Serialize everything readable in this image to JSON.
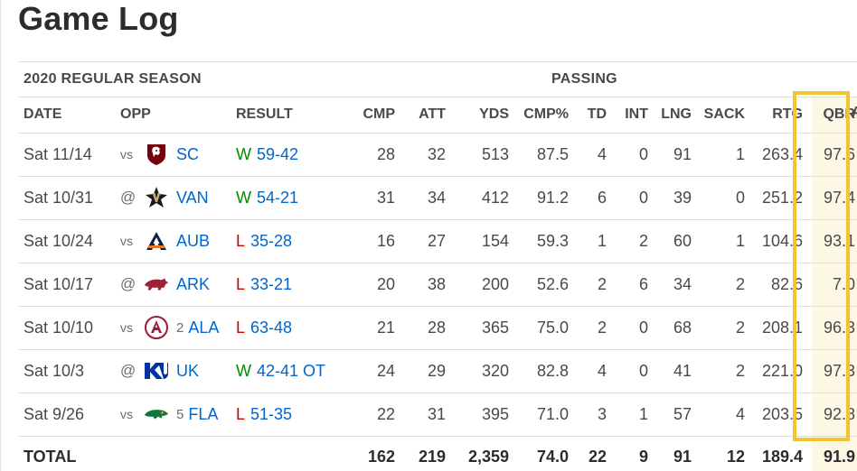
{
  "page": {
    "title": "Game Log"
  },
  "table": {
    "season_label": "2020 REGULAR SEASON",
    "group_label": "PASSING",
    "cut_header": "A",
    "headers": {
      "date": "DATE",
      "opp": "OPP",
      "result": "RESULT",
      "cmp": "CMP",
      "att": "ATT",
      "yds": "YDS",
      "cmp_pct": "CMP%",
      "td": "TD",
      "int": "INT",
      "lng": "LNG",
      "sack": "SACK",
      "rtg": "RTG",
      "qbr": "QBR"
    },
    "games": [
      {
        "date": "Sat 11/14",
        "prefix": "vs",
        "rank": "",
        "team": "SC",
        "logo": "south-carolina-gamecocks-logo",
        "wl": "W",
        "score": "59-42",
        "cmp": "28",
        "att": "32",
        "yds": "513",
        "cmp_pct": "87.5",
        "td": "4",
        "int": "0",
        "lng": "91",
        "sack": "1",
        "rtg": "263.4",
        "qbr": "97.6"
      },
      {
        "date": "Sat 10/31",
        "prefix": "@",
        "rank": "",
        "team": "VAN",
        "logo": "vanderbilt-commodores-logo",
        "wl": "W",
        "score": "54-21",
        "cmp": "31",
        "att": "34",
        "yds": "412",
        "cmp_pct": "91.2",
        "td": "6",
        "int": "0",
        "lng": "39",
        "sack": "0",
        "rtg": "251.2",
        "qbr": "97.4"
      },
      {
        "date": "Sat 10/24",
        "prefix": "vs",
        "rank": "",
        "team": "AUB",
        "logo": "auburn-tigers-logo",
        "wl": "L",
        "score": "35-28",
        "cmp": "16",
        "att": "27",
        "yds": "154",
        "cmp_pct": "59.3",
        "td": "1",
        "int": "2",
        "lng": "60",
        "sack": "1",
        "rtg": "104.6",
        "qbr": "93.1"
      },
      {
        "date": "Sat 10/17",
        "prefix": "@",
        "rank": "",
        "team": "ARK",
        "logo": "arkansas-razorbacks-logo",
        "wl": "L",
        "score": "33-21",
        "cmp": "20",
        "att": "38",
        "yds": "200",
        "cmp_pct": "52.6",
        "td": "2",
        "int": "6",
        "lng": "34",
        "sack": "2",
        "rtg": "82.6",
        "qbr": "7.0"
      },
      {
        "date": "Sat 10/10",
        "prefix": "vs",
        "rank": "2",
        "team": "ALA",
        "logo": "alabama-crimson-tide-logo",
        "wl": "L",
        "score": "63-48",
        "cmp": "21",
        "att": "28",
        "yds": "365",
        "cmp_pct": "75.0",
        "td": "2",
        "int": "0",
        "lng": "68",
        "sack": "2",
        "rtg": "208.1",
        "qbr": "96.3"
      },
      {
        "date": "Sat 10/3",
        "prefix": "@",
        "rank": "",
        "team": "UK",
        "logo": "kentucky-wildcats-logo",
        "wl": "W",
        "score": "42-41 OT",
        "cmp": "24",
        "att": "29",
        "yds": "320",
        "cmp_pct": "82.8",
        "td": "4",
        "int": "0",
        "lng": "41",
        "sack": "2",
        "rtg": "221.0",
        "qbr": "97.3"
      },
      {
        "date": "Sat 9/26",
        "prefix": "vs",
        "rank": "5",
        "team": "FLA",
        "logo": "florida-gators-logo",
        "wl": "L",
        "score": "51-35",
        "cmp": "22",
        "att": "31",
        "yds": "395",
        "cmp_pct": "71.0",
        "td": "3",
        "int": "1",
        "lng": "57",
        "sack": "4",
        "rtg": "203.5",
        "qbr": "92.8"
      }
    ],
    "total": {
      "label": "TOTAL",
      "cmp": "162",
      "att": "219",
      "yds": "2,359",
      "cmp_pct": "74.0",
      "td": "22",
      "int": "9",
      "lng": "91",
      "sack": "12",
      "rtg": "189.4",
      "qbr": "91.9"
    }
  },
  "colors": {
    "win": "#008a00",
    "loss": "#d00000",
    "link": "#0066cc",
    "highlight_border": "#f4c430",
    "highlight_fill": "#fdf8e6"
  }
}
